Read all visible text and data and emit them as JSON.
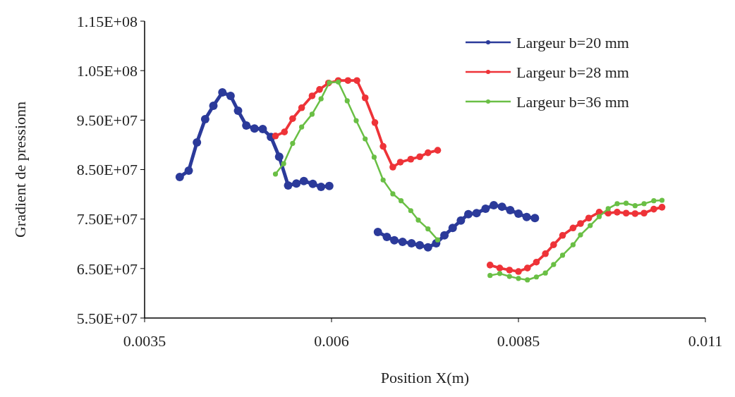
{
  "chart_data": {
    "type": "line",
    "xlabel": "Position X(m)",
    "ylabel": "Gradient de pressionn",
    "xlim": [
      0.0035,
      0.011
    ],
    "xticks": [
      0.0035,
      0.006,
      0.0085,
      0.011
    ],
    "ylim": [
      55000000,
      115000000
    ],
    "yticks": [
      {
        "value": 55000000,
        "label": "5.50E+07"
      },
      {
        "value": 65000000,
        "label": "6.50E+07"
      },
      {
        "value": 75000000,
        "label": "7.50E+07"
      },
      {
        "value": 85000000,
        "label": "8.50E+07"
      },
      {
        "value": 95000000,
        "label": "9.50E+07"
      },
      {
        "value": 105000000,
        "label": "1.05E+08"
      },
      {
        "value": 115000000,
        "label": "1.15E+08"
      }
    ],
    "grid": false,
    "legend": "top right",
    "marker": "circle",
    "line_style": "solid",
    "series": [
      {
        "name": "Largeur b=20 mm",
        "color": "#2b3a9a",
        "x": [
          0.00397,
          0.00409,
          0.0042,
          0.00431,
          0.00442,
          0.00454,
          0.00465,
          0.00475,
          0.00486,
          0.00497,
          0.00508,
          0.00519,
          0.0053,
          0.00542,
          0.00553,
          0.00563,
          0.00575,
          0.00586,
          0.00597,
          0.0063,
          0.00662,
          0.00674,
          0.00684,
          0.00695,
          0.00707,
          0.00718,
          0.00729,
          0.0074,
          0.00751,
          0.00762,
          0.00773,
          0.00783,
          0.00794,
          0.00806,
          0.00817,
          0.00828,
          0.00839,
          0.0085,
          0.00861,
          0.00872
        ],
        "values": [
          83500000,
          84800000,
          90500000,
          95200000,
          97900000,
          100600000,
          99900000,
          96900000,
          93900000,
          93300000,
          93200000,
          91600000,
          87600000,
          81800000,
          82200000,
          82700000,
          82100000,
          81500000,
          81700000,
          null,
          72400000,
          71400000,
          70700000,
          70400000,
          70100000,
          69700000,
          69300000,
          70100000,
          71700000,
          73200000,
          74700000,
          76000000,
          76200000,
          77100000,
          77800000,
          77500000,
          76800000,
          76100000,
          75400000,
          75200000
        ]
      },
      {
        "name": "Largeur b=28 mm",
        "color": "#ee3338",
        "x": [
          0.00525,
          0.00537,
          0.00548,
          0.0056,
          0.00574,
          0.00584,
          0.00596,
          0.00609,
          0.00622,
          0.00634,
          0.00645,
          0.00658,
          0.00669,
          0.00682,
          0.00692,
          0.00706,
          0.00718,
          0.00729,
          0.00742,
          0.0078,
          0.00812,
          0.00825,
          0.00838,
          0.0085,
          0.00862,
          0.00874,
          0.00886,
          0.00897,
          0.00909,
          0.00923,
          0.00933,
          0.00944,
          0.00958,
          0.0097,
          0.00982,
          0.00994,
          0.01006,
          0.01018,
          0.01031,
          0.01042
        ],
        "values": [
          91800000,
          92600000,
          95300000,
          97500000,
          99900000,
          101200000,
          102500000,
          103000000,
          103000000,
          103000000,
          99500000,
          94500000,
          89700000,
          85500000,
          86500000,
          87100000,
          87600000,
          88400000,
          88900000,
          null,
          65700000,
          65100000,
          64700000,
          64400000,
          65100000,
          66300000,
          68000000,
          69800000,
          71700000,
          73200000,
          74100000,
          75200000,
          76400000,
          76200000,
          76400000,
          76200000,
          76100000,
          76200000,
          77000000,
          77400000
        ]
      },
      {
        "name": "Largeur b=36 mm",
        "color": "#6abf45",
        "x": [
          0.00525,
          0.00536,
          0.00548,
          0.0056,
          0.00574,
          0.00586,
          0.00597,
          0.00609,
          0.00621,
          0.00633,
          0.00645,
          0.00657,
          0.00669,
          0.00682,
          0.00693,
          0.00706,
          0.00716,
          0.00729,
          0.00742,
          0.0078,
          0.00812,
          0.00825,
          0.00838,
          0.0085,
          0.00862,
          0.00874,
          0.00886,
          0.00897,
          0.00909,
          0.00923,
          0.00933,
          0.00946,
          0.00958,
          0.0097,
          0.00982,
          0.00994,
          0.01006,
          0.01018,
          0.01031,
          0.01042
        ],
        "values": [
          84100000,
          86200000,
          90300000,
          93600000,
          96200000,
          99300000,
          102600000,
          102700000,
          98900000,
          94900000,
          91200000,
          87500000,
          82900000,
          80100000,
          78700000,
          76700000,
          74800000,
          73000000,
          70800000,
          null,
          63600000,
          64000000,
          63400000,
          63000000,
          62700000,
          63300000,
          64100000,
          65800000,
          67700000,
          69800000,
          71800000,
          73700000,
          75500000,
          77100000,
          78100000,
          78200000,
          77700000,
          78100000,
          78700000,
          78800000
        ]
      }
    ]
  }
}
